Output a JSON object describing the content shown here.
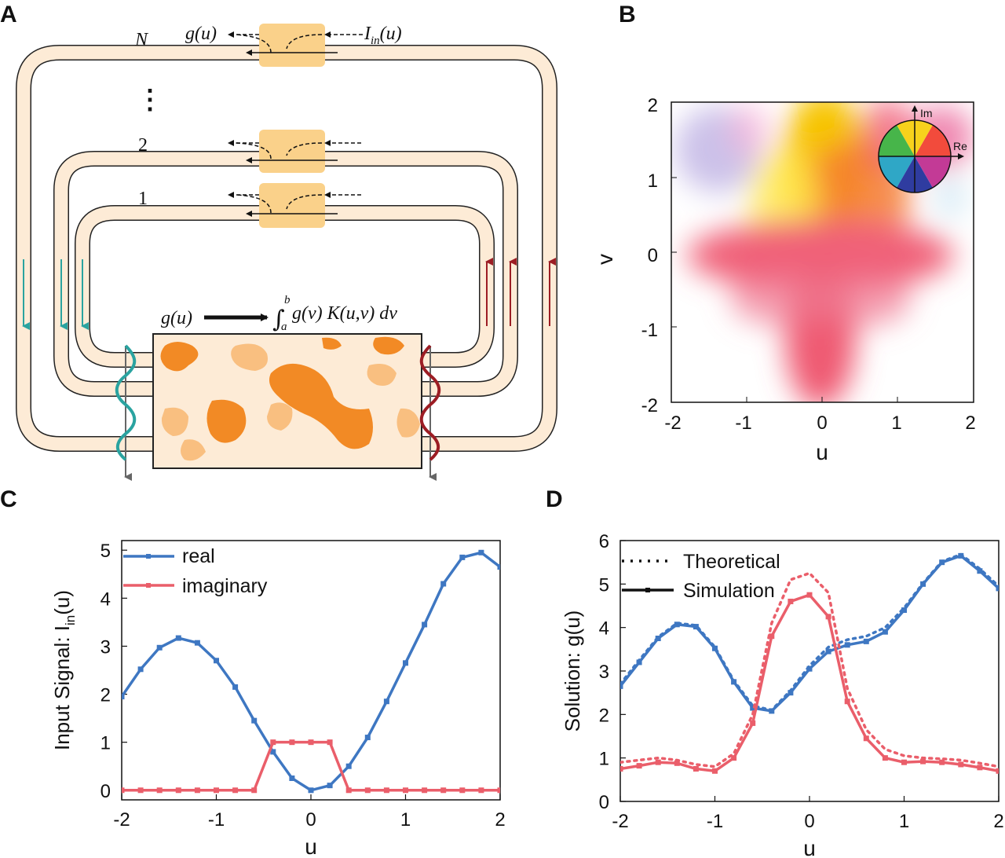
{
  "panels": {
    "a": {
      "letter": "A",
      "loop_labels": [
        "N",
        "2",
        "1"
      ],
      "dots": "⋮",
      "output_label": "g(u)",
      "input_label": "I",
      "input_sub": "in",
      "input_arg": "(u)",
      "kernel_lhs": "g(u)",
      "kernel_int_upper": "b",
      "kernel_int_lower": "a",
      "kernel_rhs": "g(v) K(u,v) dv"
    },
    "b": {
      "letter": "B",
      "xlabel": "u",
      "ylabel": "v",
      "x_ticks": [
        "-2",
        "-1",
        "0",
        "1",
        "2"
      ],
      "y_ticks": [
        "2",
        "1",
        "0",
        "-1",
        "-2"
      ],
      "wheel_im": "Im",
      "wheel_re": "Re"
    },
    "c": {
      "letter": "C",
      "ylabel_main": "Input Signal: I",
      "ylabel_sub": "in",
      "ylabel_arg": "(u)",
      "xlabel": "u",
      "x_ticks": [
        "-2",
        "-1",
        "0",
        "1",
        "2"
      ],
      "y_ticks": [
        "0",
        "1",
        "2",
        "3",
        "4",
        "5"
      ],
      "legend": [
        "real",
        "imaginary"
      ]
    },
    "d": {
      "letter": "D",
      "ylabel": "Solution: g(u)",
      "xlabel": "u",
      "x_ticks": [
        "-2",
        "-1",
        "0",
        "1",
        "2"
      ],
      "y_ticks": [
        "0",
        "1",
        "2",
        "3",
        "4",
        "5",
        "6"
      ],
      "legend": [
        "Theoretical",
        "Simulation"
      ]
    }
  },
  "colors": {
    "blue": "#3e77c2",
    "red": "#ea5e6a",
    "waveguide_fill": "#fdebd6",
    "coupler_fill": "#fad18a",
    "blob_dark": "#f28a25",
    "blob_light": "#f9bf80",
    "arrow_teal": "#2aa3a0",
    "arrow_red": "#9c1d24"
  },
  "chart_data": [
    {
      "panel": "B",
      "type": "heatmap",
      "xlabel": "u",
      "ylabel": "v",
      "xlim": [
        -2,
        2
      ],
      "ylim": [
        -2,
        2
      ],
      "colormap": "complex phase (hue) / magnitude (saturation)"
    },
    {
      "panel": "C",
      "type": "line",
      "xlabel": "u",
      "ylabel": "Input Signal: I_in(u)",
      "xlim": [
        -2,
        2
      ],
      "ylim": [
        -0.2,
        5.2
      ],
      "x": [
        -2,
        -1.8,
        -1.6,
        -1.4,
        -1.2,
        -1.0,
        -0.8,
        -0.6,
        -0.4,
        -0.2,
        0.0,
        0.2,
        0.4,
        0.6,
        0.8,
        1.0,
        1.2,
        1.4,
        1.6,
        1.8,
        2.0
      ],
      "series": [
        {
          "name": "real",
          "values": [
            1.95,
            2.52,
            2.97,
            3.17,
            3.07,
            2.7,
            2.15,
            1.45,
            0.8,
            0.25,
            0.0,
            0.1,
            0.5,
            1.1,
            1.85,
            2.65,
            3.45,
            4.3,
            4.85,
            4.95,
            4.65
          ]
        },
        {
          "name": "imaginary",
          "values": [
            0,
            0,
            0,
            0,
            0,
            0,
            0,
            0,
            1,
            1,
            1,
            1,
            0,
            0,
            0,
            0,
            0,
            0,
            0,
            0,
            0
          ]
        }
      ],
      "legend_position": "top-left"
    },
    {
      "panel": "D",
      "type": "line",
      "xlabel": "u",
      "ylabel": "Solution: g(u)",
      "xlim": [
        -2,
        2
      ],
      "ylim": [
        0,
        6
      ],
      "x": [
        -2,
        -1.8,
        -1.6,
        -1.4,
        -1.2,
        -1.0,
        -0.8,
        -0.6,
        -0.4,
        -0.2,
        0.0,
        0.2,
        0.4,
        0.6,
        0.8,
        1.0,
        1.2,
        1.4,
        1.6,
        1.8,
        2.0
      ],
      "series": [
        {
          "name": "Simulation real",
          "style": "solid",
          "values": [
            2.65,
            3.2,
            3.75,
            4.07,
            4.02,
            3.52,
            2.75,
            2.15,
            2.08,
            2.5,
            3.05,
            3.45,
            3.6,
            3.68,
            3.9,
            4.4,
            5.0,
            5.5,
            5.65,
            5.3,
            4.9
          ]
        },
        {
          "name": "Theoretical real",
          "style": "dotted",
          "values": [
            2.7,
            3.25,
            3.78,
            4.1,
            4.05,
            3.55,
            2.78,
            2.2,
            2.1,
            2.55,
            3.12,
            3.55,
            3.72,
            3.8,
            4.0,
            4.45,
            5.02,
            5.52,
            5.68,
            5.35,
            4.95
          ]
        },
        {
          "name": "Simulation imaginary",
          "style": "solid",
          "values": [
            0.75,
            0.82,
            0.9,
            0.88,
            0.75,
            0.7,
            1.0,
            1.8,
            3.8,
            4.6,
            4.75,
            4.25,
            2.3,
            1.45,
            1.0,
            0.9,
            0.92,
            0.9,
            0.85,
            0.78,
            0.7
          ]
        },
        {
          "name": "Theoretical imaginary",
          "style": "dotted",
          "values": [
            0.9,
            0.95,
            1.0,
            0.95,
            0.85,
            0.8,
            1.1,
            2.0,
            4.1,
            5.1,
            5.25,
            4.8,
            2.6,
            1.65,
            1.2,
            1.05,
            1.0,
            0.98,
            0.95,
            0.88,
            0.8
          ]
        }
      ],
      "legend_position": "top-left"
    }
  ]
}
